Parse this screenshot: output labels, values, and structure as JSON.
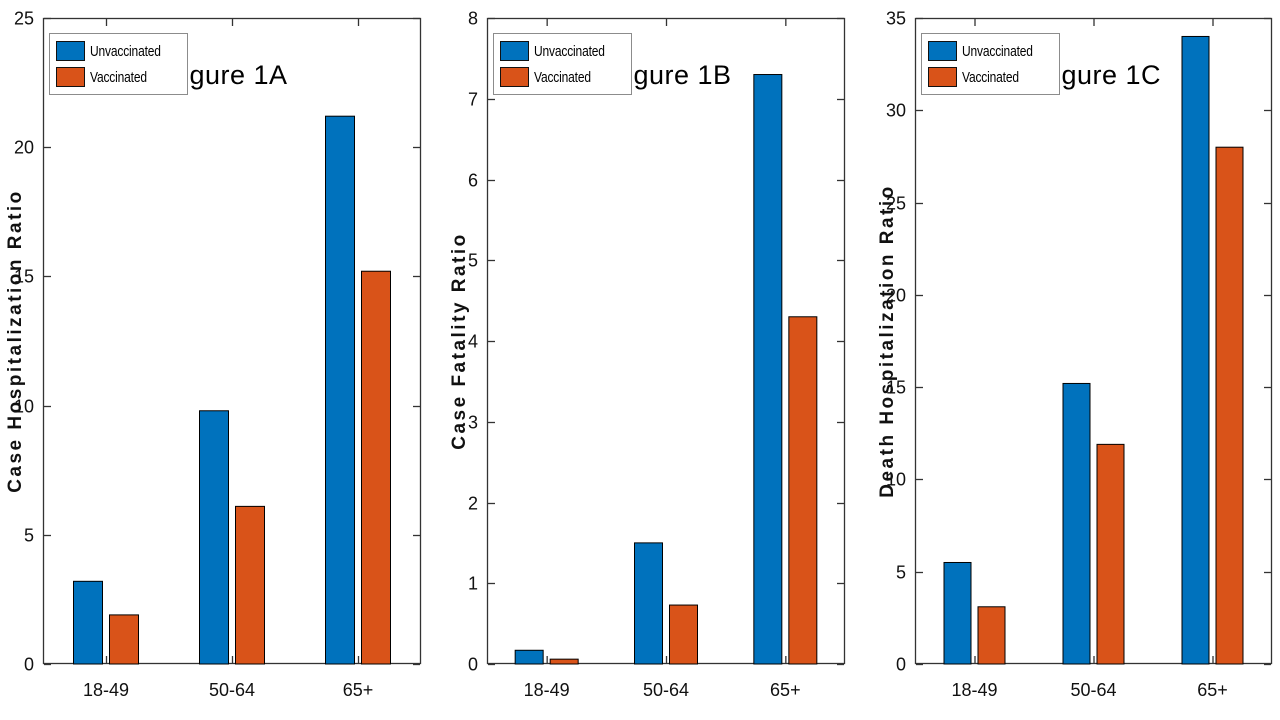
{
  "styles": {
    "background": "#ffffff",
    "axis_color": "#333333",
    "text_color": "#111111",
    "bar_edge_color": "#000000",
    "legend_border_color": "#8c8c8c",
    "unvaccinated_color": "#0072BD",
    "vaccinated_color": "#D95319"
  },
  "chart_data": [
    {
      "type": "bar",
      "panel_label": "Figure 1A",
      "ylabel": "Case Hospitalization Ratio",
      "xlabel": "",
      "categories": [
        "18-49",
        "50-64",
        "65+"
      ],
      "series": [
        {
          "name": "Unvaccinated",
          "color": "#0072BD",
          "values": [
            3.2,
            9.8,
            21.2
          ]
        },
        {
          "name": "Vaccinated",
          "color": "#D95319",
          "values": [
            1.9,
            6.1,
            15.2
          ]
        }
      ],
      "ylim": [
        0,
        25
      ],
      "yticks": [
        0,
        5,
        10,
        15,
        20,
        25
      ],
      "legend_position": "top-left",
      "grid": false
    },
    {
      "type": "bar",
      "panel_label": "Figure 1B",
      "ylabel": "Case Fatality Ratio",
      "xlabel": "",
      "categories": [
        "18-49",
        "50-64",
        "65+"
      ],
      "series": [
        {
          "name": "Unvaccinated",
          "color": "#0072BD",
          "values": [
            0.17,
            1.5,
            7.3
          ]
        },
        {
          "name": "Vaccinated",
          "color": "#D95319",
          "values": [
            0.06,
            0.73,
            4.3
          ]
        }
      ],
      "ylim": [
        0,
        8
      ],
      "yticks": [
        0,
        1,
        2,
        3,
        4,
        5,
        6,
        7,
        8
      ],
      "legend_position": "top-left",
      "grid": false
    },
    {
      "type": "bar",
      "panel_label": "Figure 1C",
      "ylabel": "Death Hospitalization Ratio",
      "xlabel": "",
      "categories": [
        "18-49",
        "50-64",
        "65+"
      ],
      "series": [
        {
          "name": "Unvaccinated",
          "color": "#0072BD",
          "values": [
            5.5,
            15.2,
            34.0
          ]
        },
        {
          "name": "Vaccinated",
          "color": "#D95319",
          "values": [
            3.1,
            11.9,
            28.0
          ]
        }
      ],
      "ylim": [
        0,
        35
      ],
      "yticks": [
        0,
        5,
        10,
        15,
        20,
        25,
        30,
        35
      ],
      "legend_position": "top-left",
      "grid": false
    }
  ]
}
